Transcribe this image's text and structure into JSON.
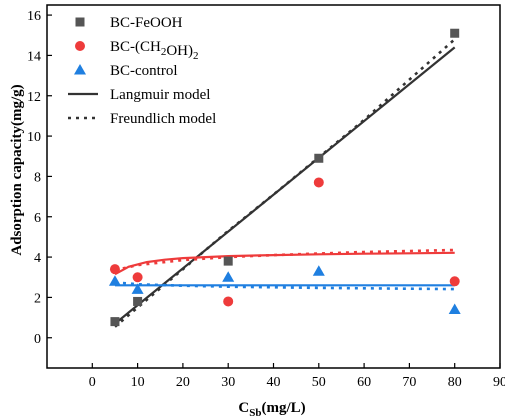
{
  "chart_data": {
    "type": "scatter",
    "xlabel": "C",
    "xlabel_sub": "Sb",
    "xlabel_suffix": "(mg/L)",
    "ylabel": "Adsorption capacity(mg/g)",
    "xlim": [
      -10,
      90
    ],
    "ylim": [
      -1.5,
      16.5
    ],
    "xticks": [
      0,
      10,
      20,
      30,
      40,
      50,
      60,
      70,
      80,
      90
    ],
    "yticks": [
      0,
      2,
      4,
      6,
      8,
      10,
      12,
      14,
      16
    ],
    "legend_position": "top-left",
    "series": [
      {
        "name": "BC-FeOOH",
        "marker": "square",
        "color": "#555555",
        "x": [
          5,
          10,
          30,
          50,
          80
        ],
        "y": [
          0.8,
          1.8,
          3.8,
          8.9,
          15.1
        ]
      },
      {
        "name": "BC-(CH2OH)2",
        "marker": "circle",
        "color": "#ee3b3b",
        "x": [
          5,
          10,
          30,
          50,
          80
        ],
        "y": [
          3.4,
          3.0,
          1.8,
          7.7,
          2.8
        ]
      },
      {
        "name": "BC-control",
        "marker": "triangle",
        "color": "#1f7fe0",
        "x": [
          5,
          10,
          30,
          50,
          80
        ],
        "y": [
          2.8,
          2.4,
          3.0,
          3.3,
          1.4
        ]
      }
    ],
    "fits": [
      {
        "name": "Langmuir model",
        "style": "solid"
      },
      {
        "name": "Freundlich model",
        "style": "dotted"
      }
    ],
    "fit_curves": [
      {
        "series": "BC-FeOOH",
        "model": "Langmuir",
        "color": "#333333",
        "x": [
          5,
          80
        ],
        "y": [
          0.7,
          14.4
        ]
      },
      {
        "series": "BC-FeOOH",
        "model": "Freundlich",
        "color": "#333333",
        "x": [
          5,
          10,
          20,
          30,
          40,
          50,
          60,
          70,
          80
        ],
        "y": [
          0.55,
          1.5,
          3.4,
          5.3,
          7.1,
          8.95,
          10.8,
          12.8,
          14.8
        ]
      },
      {
        "series": "BC-(CH2OH)2",
        "model": "Langmuir",
        "color": "#ee3b3b",
        "x": [
          5,
          8,
          12,
          16,
          20,
          30,
          40,
          50,
          60,
          70,
          80
        ],
        "y": [
          3.15,
          3.52,
          3.75,
          3.87,
          3.95,
          4.05,
          4.1,
          4.14,
          4.17,
          4.19,
          4.21
        ]
      },
      {
        "series": "BC-(CH2OH)2",
        "model": "Freundlich",
        "color": "#ee3b3b",
        "x": [
          5,
          10,
          20,
          30,
          40,
          50,
          60,
          70,
          80
        ],
        "y": [
          3.35,
          3.6,
          3.85,
          4.0,
          4.1,
          4.18,
          4.25,
          4.3,
          4.35
        ]
      },
      {
        "series": "BC-control",
        "model": "Langmuir",
        "color": "#1f7fe0",
        "x": [
          5,
          80
        ],
        "y": [
          2.6,
          2.6
        ]
      },
      {
        "series": "BC-control",
        "model": "Freundlich",
        "color": "#1f7fe0",
        "x": [
          5,
          10,
          20,
          30,
          40,
          50,
          60,
          70,
          80
        ],
        "y": [
          2.75,
          2.65,
          2.58,
          2.53,
          2.5,
          2.47,
          2.45,
          2.43,
          2.41
        ]
      }
    ]
  }
}
